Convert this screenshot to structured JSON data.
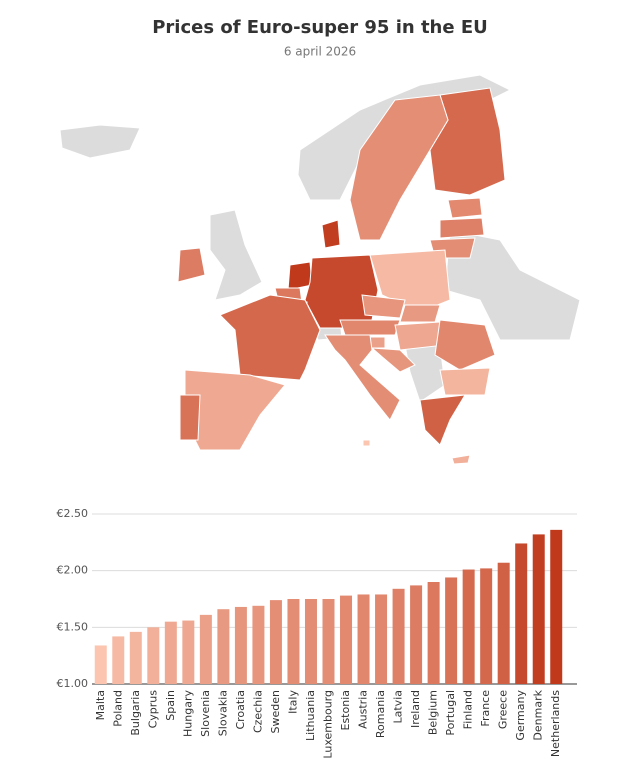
{
  "chart_data": {
    "type": "bar",
    "title": "Prices of Euro-super 95 in the EU",
    "subtitle": "6 april 2026",
    "categories": [
      "Malta",
      "Poland",
      "Bulgaria",
      "Cyprus",
      "Spain",
      "Hungary",
      "Slovenia",
      "Slovakia",
      "Croatia",
      "Czechia",
      "Sweden",
      "Italy",
      "Lithuania",
      "Luxembourg",
      "Estonia",
      "Austria",
      "Romania",
      "Latvia",
      "Ireland",
      "Belgium",
      "Portugal",
      "Finland",
      "France",
      "Greece",
      "Germany",
      "Denmark",
      "Netherlands"
    ],
    "values": [
      1.34,
      1.42,
      1.46,
      1.5,
      1.55,
      1.56,
      1.61,
      1.66,
      1.68,
      1.69,
      1.74,
      1.75,
      1.75,
      1.75,
      1.78,
      1.79,
      1.79,
      1.84,
      1.87,
      1.9,
      1.94,
      2.01,
      2.02,
      2.07,
      2.24,
      2.32,
      2.36
    ],
    "color_scale": [
      "#fbc5b0",
      "#c0391b"
    ],
    "ylim": [
      1,
      2.5
    ],
    "yticks": [
      {
        "value": 1,
        "label": "€1.00"
      },
      {
        "value": 1.5,
        "label": "€1.50"
      },
      {
        "value": 2,
        "label": "€2.00"
      },
      {
        "value": 2.5,
        "label": "€2.50"
      }
    ],
    "grid": true
  }
}
